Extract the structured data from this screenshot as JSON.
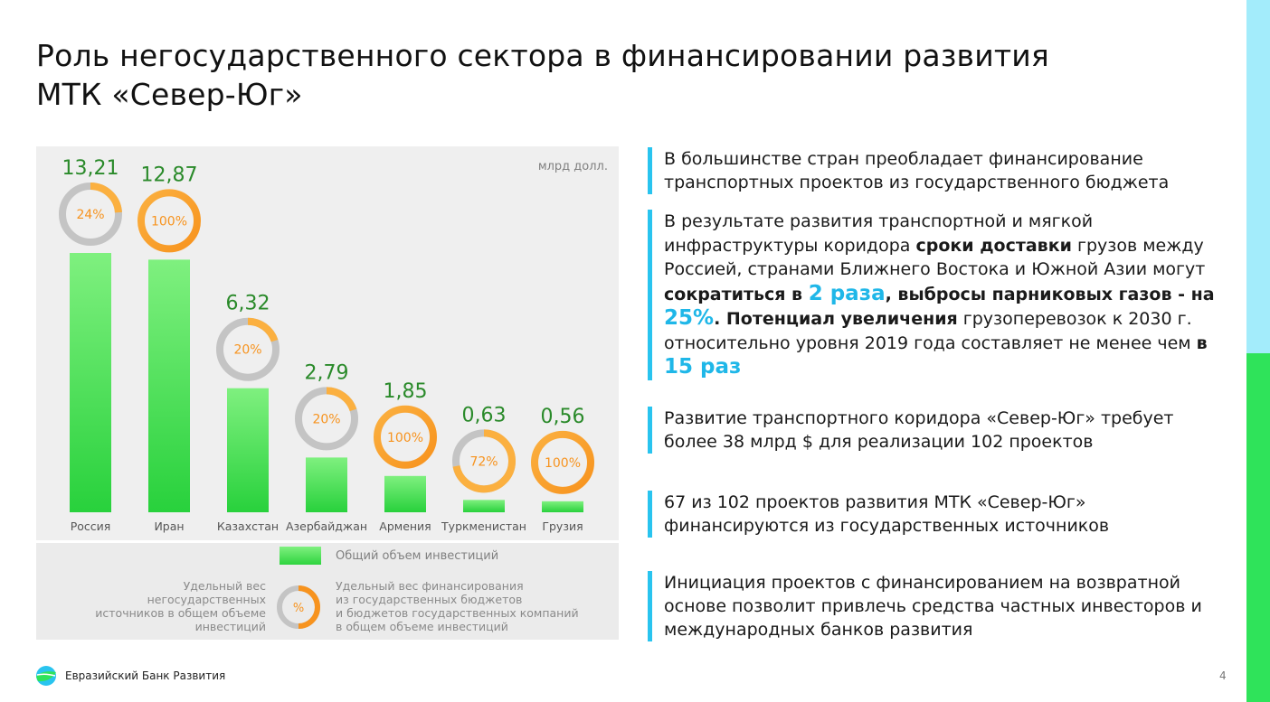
{
  "header": {
    "title_line1": "Роль негосударственного сектора в финансировании развития",
    "title_line2": "МТК «Север-Юг»"
  },
  "colors": {
    "bar_top": "#7ff07f",
    "bar_bottom": "#28d13c",
    "value_text": "#2a8a2a",
    "ring_orange": "#f7931e",
    "ring_orange_light": "#fbb040",
    "ring_grey": "#c4c4c4",
    "accent_cyan": "#29c4ef"
  },
  "chart_data": {
    "type": "bar",
    "unit": "млрд долл.",
    "categories": [
      "Россия",
      "Иран",
      "Казахстан",
      "Азербайджан",
      "Армения",
      "Туркменистан",
      "Грузия"
    ],
    "values": [
      13.21,
      12.87,
      6.32,
      2.79,
      1.85,
      0.63,
      0.56
    ],
    "value_labels": [
      "13,21",
      "12,87",
      "6,32",
      "2,79",
      "1,85",
      "0,63",
      "0,56"
    ],
    "ring_percent": [
      24,
      100,
      20,
      20,
      100,
      72,
      100
    ],
    "ring_labels": [
      "24%",
      "100%",
      "20%",
      "20%",
      "100%",
      "72%",
      "100%"
    ],
    "ring_style": [
      "grey",
      "orange",
      "grey",
      "grey",
      "orange",
      "grey",
      "orange"
    ],
    "ylim": [
      0,
      13.21
    ],
    "title": "",
    "xlabel": "",
    "ylabel": ""
  },
  "legend": {
    "bar_label": "Общий объем инвестиций",
    "left_label_lines": [
      "Удельный вес",
      "негосударственных",
      "источников в общем объеме",
      "инвестиций"
    ],
    "ring_symbol": "%",
    "right_label_lines": [
      "Удельный вес финансирования",
      "из государственных бюджетов",
      "и бюджетов государственных компаний",
      "в общем объеме инвестиций"
    ]
  },
  "bullets": {
    "b1": "В большинстве стран преобладает финансирование транспортных проектов из государственного бюджета",
    "b2_p1": "В результате развития транспортной и мягкой инфраструктуры коридора ",
    "b2_b1": "сроки доставки",
    "b2_p2": " грузов между Россией, странами Ближнего Востока и Южной Азии могут ",
    "b2_b2": "сократиться в ",
    "b2_h1": "2 раза",
    "b2_b3": ", выбросы парниковых газов - на ",
    "b2_h2": "25%",
    "b2_b4": ". Потенциал увеличения",
    "b2_p3": " грузоперевозок к 2030 г. относительно уровня 2019 года составляет не менее чем ",
    "b2_b5": "в ",
    "b2_h3": "15 раз",
    "b3": "Развитие транспортного коридора «Север-Юг» требует более 38 млрд $ для реализации 102 проектов",
    "b4": "67 из 102 проектов развития МТК «Север-Юг» финансируются из государственных источников",
    "b5": "Инициация проектов с финансированием на возвратной основе позволит привлечь средства частных инвесторов и международных банков развития"
  },
  "footer": {
    "org_name": "Евразийский Банк Развития",
    "page_number": "4"
  }
}
